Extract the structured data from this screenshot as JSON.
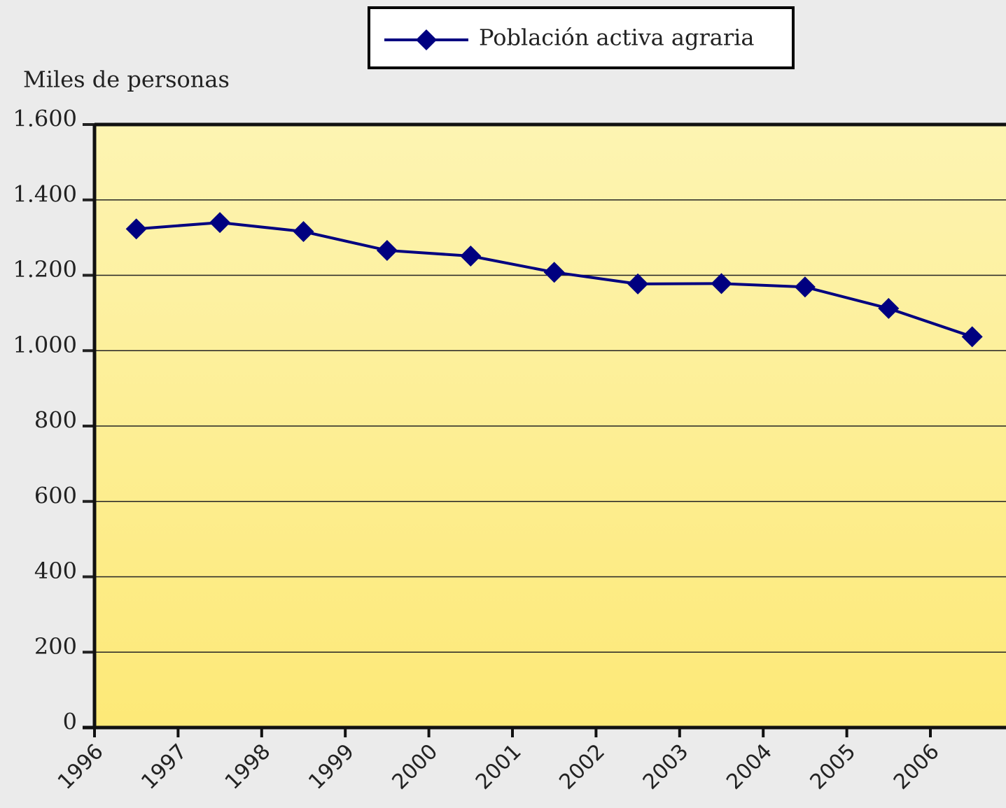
{
  "chart_data": {
    "type": "line",
    "y_axis_label": "Miles de personas",
    "categories": [
      "1996",
      "1997",
      "1998",
      "1999",
      "2000",
      "2001",
      "2002",
      "2003",
      "2004",
      "2005",
      "2006"
    ],
    "series": [
      {
        "name": "Población activa agraria",
        "color": "#000080",
        "values": [
          1323,
          1340,
          1316,
          1266,
          1251,
          1208,
          1177,
          1178,
          1169,
          1112,
          1037
        ]
      }
    ],
    "ylim": [
      0,
      1600
    ],
    "yticks": [
      0,
      200,
      400,
      600,
      800,
      {
        "value": 1000,
        "label": "1.000"
      },
      {
        "value": 1200,
        "label": "1.200"
      },
      {
        "value": 1400,
        "label": "1.400"
      },
      {
        "value": 1600,
        "label": "1.600"
      }
    ],
    "grid": true,
    "legend": "top"
  }
}
